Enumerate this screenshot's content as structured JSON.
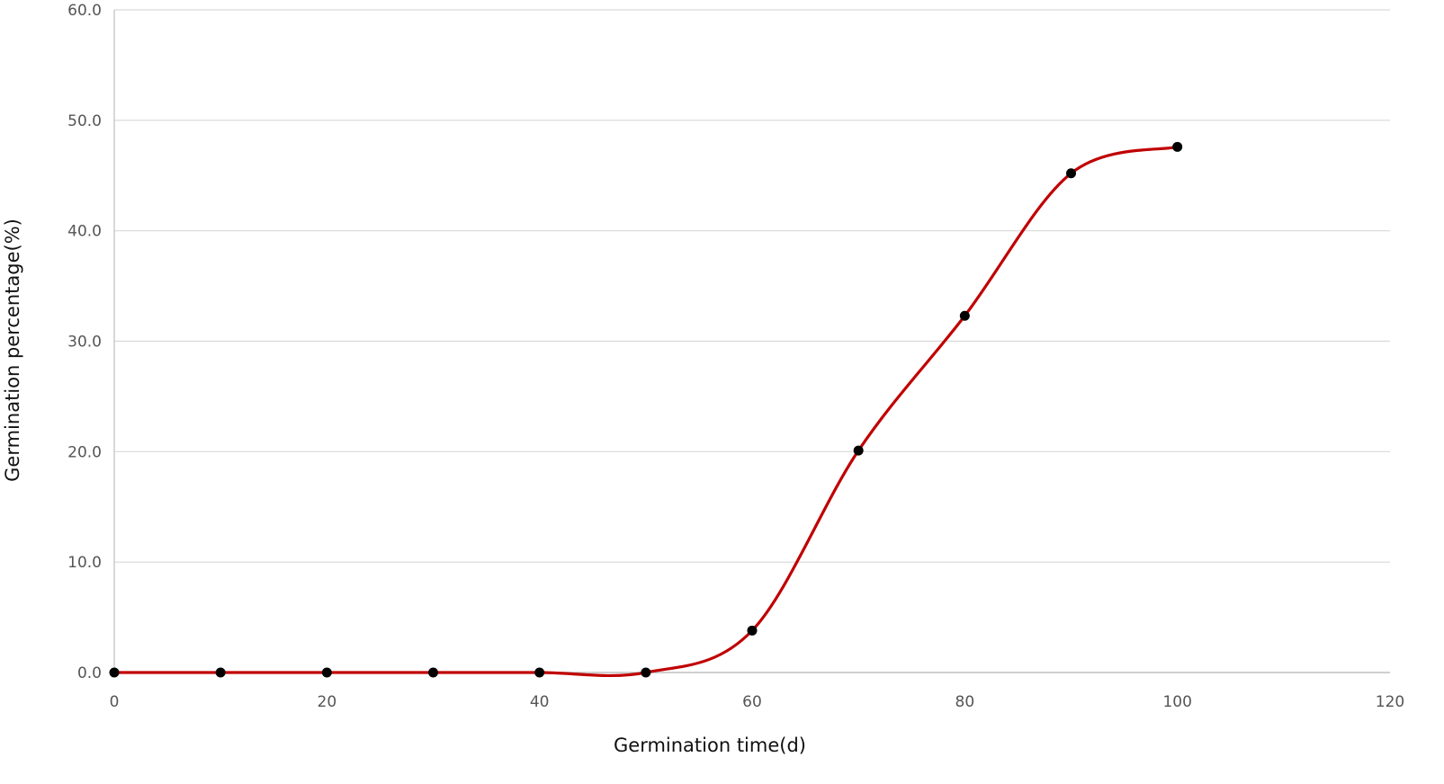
{
  "chart_data": {
    "type": "line",
    "title": "",
    "xlabel": "Germination time(d)",
    "ylabel": "Germination percentage(%)",
    "xlim": [
      0,
      120
    ],
    "ylim": [
      0,
      60
    ],
    "x_ticks": [
      "0",
      "20",
      "40",
      "60",
      "80",
      "100",
      "120"
    ],
    "y_ticks": [
      "0.0",
      "10.0",
      "20.0",
      "30.0",
      "40.0",
      "50.0",
      "60.0"
    ],
    "grid": true,
    "legend": "none",
    "smooth": true,
    "series": [
      {
        "x": [
          0,
          10,
          20,
          30,
          40,
          50,
          60,
          70,
          80,
          90,
          100
        ],
        "y": [
          0.0,
          0.0,
          0.0,
          0.0,
          0.0,
          0.0,
          3.8,
          20.1,
          32.3,
          45.2,
          47.6
        ],
        "line_color": "#c00000",
        "marker_color": "#000000"
      }
    ]
  }
}
